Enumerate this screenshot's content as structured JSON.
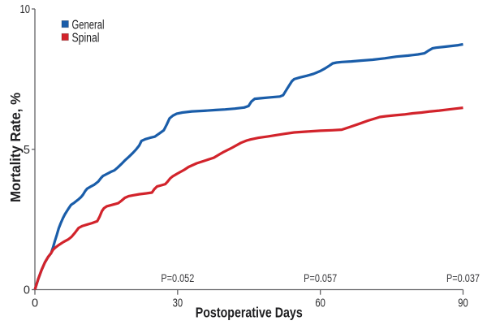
{
  "chart_data": {
    "type": "line",
    "title": "",
    "xlabel": "Postoperative Days",
    "ylabel": "Mortality Rate, %",
    "xlim": [
      0,
      90
    ],
    "ylim": [
      0,
      10
    ],
    "xticks": [
      "0",
      "30",
      "60",
      "90"
    ],
    "yticks": [
      "0",
      "5",
      "10"
    ],
    "grid": false,
    "legend_position": "top-left-inside",
    "series": [
      {
        "name": "General",
        "color": "#1a5da9",
        "points": [
          [
            0,
            0
          ],
          [
            0.7,
            0.38
          ],
          [
            1.4,
            0.7
          ],
          [
            2.1,
            0.97
          ],
          [
            2.8,
            1.17
          ],
          [
            3.4,
            1.3
          ],
          [
            3.8,
            1.5
          ],
          [
            4.2,
            1.73
          ],
          [
            4.6,
            1.95
          ],
          [
            5.0,
            2.18
          ],
          [
            5.4,
            2.36
          ],
          [
            5.9,
            2.55
          ],
          [
            6.3,
            2.68
          ],
          [
            7.0,
            2.87
          ],
          [
            7.6,
            3.02
          ],
          [
            8.3,
            3.1
          ],
          [
            8.8,
            3.17
          ],
          [
            9.2,
            3.22
          ],
          [
            9.7,
            3.3
          ],
          [
            10.1,
            3.38
          ],
          [
            10.6,
            3.52
          ],
          [
            11.0,
            3.6
          ],
          [
            11.7,
            3.67
          ],
          [
            12.4,
            3.73
          ],
          [
            13.3,
            3.85
          ],
          [
            13.9,
            3.98
          ],
          [
            14.3,
            4.05
          ],
          [
            15.0,
            4.11
          ],
          [
            16.0,
            4.2
          ],
          [
            16.7,
            4.25
          ],
          [
            17.4,
            4.35
          ],
          [
            18.2,
            4.48
          ],
          [
            19.0,
            4.62
          ],
          [
            19.8,
            4.74
          ],
          [
            20.6,
            4.87
          ],
          [
            21.3,
            5.0
          ],
          [
            21.9,
            5.13
          ],
          [
            22.4,
            5.3
          ],
          [
            23.2,
            5.36
          ],
          [
            24.2,
            5.41
          ],
          [
            25.2,
            5.45
          ],
          [
            26.2,
            5.57
          ],
          [
            27.1,
            5.68
          ],
          [
            27.7,
            5.88
          ],
          [
            28.3,
            6.1
          ],
          [
            29.0,
            6.2
          ],
          [
            29.8,
            6.27
          ],
          [
            31.0,
            6.31
          ],
          [
            33.0,
            6.35
          ],
          [
            35.5,
            6.37
          ],
          [
            38.0,
            6.4
          ],
          [
            40.0,
            6.42
          ],
          [
            42.0,
            6.45
          ],
          [
            44.0,
            6.49
          ],
          [
            44.9,
            6.54
          ],
          [
            45.5,
            6.7
          ],
          [
            46.2,
            6.8
          ],
          [
            47.5,
            6.82
          ],
          [
            49.5,
            6.85
          ],
          [
            51.5,
            6.88
          ],
          [
            52.2,
            6.93
          ],
          [
            53.1,
            7.18
          ],
          [
            54.0,
            7.42
          ],
          [
            54.5,
            7.5
          ],
          [
            55.7,
            7.56
          ],
          [
            57.2,
            7.62
          ],
          [
            58.6,
            7.69
          ],
          [
            60.0,
            7.79
          ],
          [
            61.0,
            7.88
          ],
          [
            61.9,
            7.98
          ],
          [
            62.6,
            8.06
          ],
          [
            63.4,
            8.09
          ],
          [
            64.5,
            8.11
          ],
          [
            66.5,
            8.13
          ],
          [
            68.5,
            8.16
          ],
          [
            71.0,
            8.19
          ],
          [
            73.5,
            8.24
          ],
          [
            76.0,
            8.3
          ],
          [
            78.5,
            8.34
          ],
          [
            80.5,
            8.38
          ],
          [
            81.9,
            8.42
          ],
          [
            82.8,
            8.52
          ],
          [
            83.6,
            8.6
          ],
          [
            84.3,
            8.62
          ],
          [
            86.0,
            8.65
          ],
          [
            87.5,
            8.68
          ],
          [
            89.0,
            8.71
          ],
          [
            90.0,
            8.74
          ]
        ]
      },
      {
        "name": "Spinal",
        "color": "#d2232b",
        "points": [
          [
            0,
            0
          ],
          [
            0.7,
            0.38
          ],
          [
            1.4,
            0.7
          ],
          [
            2.1,
            0.97
          ],
          [
            2.8,
            1.17
          ],
          [
            3.4,
            1.3
          ],
          [
            3.8,
            1.42
          ],
          [
            4.3,
            1.5
          ],
          [
            5.0,
            1.59
          ],
          [
            6.0,
            1.7
          ],
          [
            7.0,
            1.79
          ],
          [
            7.7,
            1.88
          ],
          [
            8.4,
            2.02
          ],
          [
            9.2,
            2.2
          ],
          [
            10.0,
            2.27
          ],
          [
            11.0,
            2.32
          ],
          [
            12.0,
            2.37
          ],
          [
            13.1,
            2.44
          ],
          [
            13.6,
            2.6
          ],
          [
            14.1,
            2.8
          ],
          [
            14.5,
            2.9
          ],
          [
            15.1,
            2.97
          ],
          [
            15.8,
            3.0
          ],
          [
            16.9,
            3.05
          ],
          [
            17.5,
            3.08
          ],
          [
            18.2,
            3.17
          ],
          [
            18.9,
            3.27
          ],
          [
            19.7,
            3.33
          ],
          [
            20.6,
            3.36
          ],
          [
            22.0,
            3.4
          ],
          [
            23.4,
            3.43
          ],
          [
            24.6,
            3.46
          ],
          [
            25.1,
            3.58
          ],
          [
            25.7,
            3.68
          ],
          [
            26.6,
            3.72
          ],
          [
            27.4,
            3.76
          ],
          [
            27.8,
            3.83
          ],
          [
            28.4,
            3.96
          ],
          [
            28.9,
            4.03
          ],
          [
            30.0,
            4.14
          ],
          [
            31.4,
            4.27
          ],
          [
            32.3,
            4.37
          ],
          [
            34.0,
            4.5
          ],
          [
            35.8,
            4.6
          ],
          [
            37.6,
            4.7
          ],
          [
            39.0,
            4.84
          ],
          [
            39.5,
            4.89
          ],
          [
            41.4,
            5.05
          ],
          [
            43.3,
            5.23
          ],
          [
            44.5,
            5.31
          ],
          [
            45.3,
            5.35
          ],
          [
            47.0,
            5.41
          ],
          [
            49.0,
            5.46
          ],
          [
            51.0,
            5.51
          ],
          [
            52.5,
            5.55
          ],
          [
            54.5,
            5.6
          ],
          [
            57.0,
            5.63
          ],
          [
            60.0,
            5.66
          ],
          [
            62.5,
            5.68
          ],
          [
            64.5,
            5.7
          ],
          [
            66.3,
            5.8
          ],
          [
            68.2,
            5.91
          ],
          [
            70.0,
            6.02
          ],
          [
            71.9,
            6.12
          ],
          [
            72.5,
            6.15
          ],
          [
            73.8,
            6.18
          ],
          [
            75.7,
            6.21
          ],
          [
            77.6,
            6.24
          ],
          [
            79.4,
            6.28
          ],
          [
            81.3,
            6.31
          ],
          [
            83.2,
            6.35
          ],
          [
            85.0,
            6.38
          ],
          [
            87.0,
            6.42
          ],
          [
            89.0,
            6.46
          ],
          [
            90.0,
            6.48
          ]
        ]
      }
    ],
    "annotations": [
      {
        "x": 30,
        "label": "P=0.052"
      },
      {
        "x": 60,
        "label": "P=0.057"
      },
      {
        "x": 90,
        "label": "P=0.037"
      }
    ]
  },
  "colors": {
    "background": "#ffffff",
    "axis": "#636366",
    "title_text": "#1e1e20",
    "tick_text": "#2b2b2d",
    "annotation_text": "#3a3a3d"
  }
}
